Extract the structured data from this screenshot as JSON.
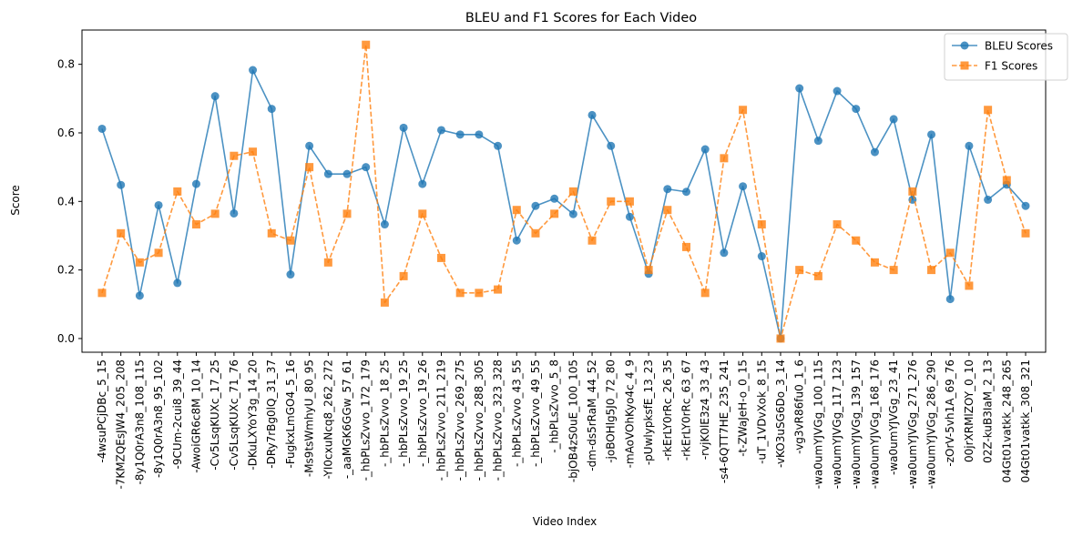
{
  "chart_data": {
    "type": "line",
    "title": "BLEU and F1 Scores for Each Video",
    "xlabel": "Video Index",
    "ylabel": "Score",
    "ylim": [
      -0.04,
      0.9
    ],
    "yticks": [
      "0.0",
      "0.2",
      "0.4",
      "0.6",
      "0.8"
    ],
    "ytick_values": [
      0,
      0.2,
      0.4,
      0.6,
      0.8
    ],
    "grid": false,
    "legend_position": "top-right",
    "categories": [
      "-4wsuPCjDBc_5_15",
      "-7KMZQEsJW4_205_208",
      "-8y1Q0rA3n8_108_115",
      "-8y1Q0rA3n8_95_102",
      "-9CUm-2cui8_39_44",
      "-AwoiGR6c8M_10_14",
      "-Cv5LsqKUXc_17_25",
      "-Cv5LsqKUXc_71_76",
      "-DKuLXYoY3g_14_20",
      "-DRy7rBg0lQ_31_37",
      "-FugkxLmGO4_5_16",
      "-Ms9tsWmhyU_80_95",
      "-YI0cxuNcq8_262_272",
      "-_aaMGK6GGw_57_61",
      "-_hbPLsZvvo_172_179",
      "-_hbPLsZvvo_18_25",
      "-_hbPLsZvvo_19_25",
      "-_hbPLsZvvo_19_26",
      "-_hbPLsZvvo_211_219",
      "-_hbPLsZvvo_269_275",
      "-_hbPLsZvvo_288_305",
      "-_hbPLsZvvo_323_328",
      "-_hbPLsZvvo_43_55",
      "-_hbPLsZvvo_49_55",
      "-_hbPLsZvvo_5_8",
      "-bjOB4zS0uE_100_105",
      "-dm-ds5rRaM_44_52",
      "-joBOHlg5J0_72_80",
      "-mAoVOhKyo4c_4_9",
      "-pUwlypksfE_13_23",
      "-rkErLY0rRc_26_35",
      "-rkErLY0rRc_63_67",
      "-rvjK0lE3z4_33_43",
      "-s4-6QTT7HE_235_241",
      "-t-ZWaJeH-o_0_15",
      "-uT_1VDvXok_8_15",
      "-vKO3uSG6Do_3_14",
      "-vg3vR86fu0_1_6",
      "-wa0umYJVGg_100_115",
      "-wa0umYJVGg_117_123",
      "-wa0umYJVGg_139_157",
      "-wa0umYJVGg_168_176",
      "-wa0umYJVGg_23_41",
      "-wa0umYJVGg_271_276",
      "-wa0umYJVGg_286_290",
      "-zOrV-5vh1A_69_76",
      "00jrXRMlZOY_0_10",
      "02Z-kuB3IaM_2_13",
      "04Gt01vatkk_248_265",
      "04Gt01vatkk_308_321"
    ],
    "series": [
      {
        "name": "BLEU Scores",
        "color": "#1f77b4",
        "marker": "circle",
        "linestyle": "solid",
        "values": [
          0.612,
          0.448,
          0.125,
          0.389,
          0.162,
          0.451,
          0.707,
          0.365,
          0.783,
          0.67,
          0.187,
          0.562,
          0.48,
          0.48,
          0.5,
          0.333,
          0.615,
          0.451,
          0.608,
          0.595,
          0.595,
          0.562,
          0.286,
          0.387,
          0.408,
          0.363,
          0.652,
          0.562,
          0.355,
          0.189,
          0.436,
          0.428,
          0.552,
          0.25,
          0.444,
          0.24,
          0.0,
          0.73,
          0.577,
          0.722,
          0.67,
          0.544,
          0.64,
          0.405,
          0.595,
          0.115,
          0.562,
          0.405,
          0.449,
          0.387
        ]
      },
      {
        "name": "F1 Scores",
        "color": "#ff7f0e",
        "marker": "square",
        "linestyle": "dashed",
        "values": [
          0.133,
          0.307,
          0.222,
          0.25,
          0.429,
          0.333,
          0.364,
          0.533,
          0.545,
          0.307,
          0.286,
          0.5,
          0.222,
          0.364,
          0.857,
          0.105,
          0.182,
          0.364,
          0.235,
          0.133,
          0.133,
          0.143,
          0.375,
          0.307,
          0.364,
          0.429,
          0.286,
          0.4,
          0.4,
          0.2,
          0.375,
          0.267,
          0.133,
          0.526,
          0.667,
          0.333,
          0.0,
          0.2,
          0.182,
          0.333,
          0.286,
          0.222,
          0.2,
          0.429,
          0.2,
          0.25,
          0.154,
          0.667,
          0.462,
          0.307
        ]
      }
    ]
  }
}
